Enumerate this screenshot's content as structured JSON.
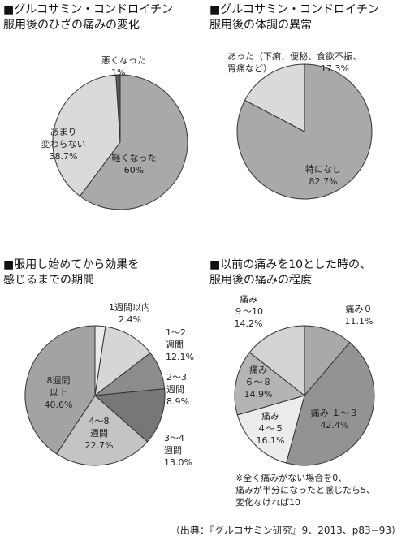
{
  "chart_data": [
    {
      "type": "pie",
      "title": "■グルコサミン・コンドロイチン\n服用後のひざの痛みの変化",
      "categories": [
        "軽くなった",
        "あまり\n変わらない",
        "悪くなった"
      ],
      "values": [
        60,
        38.7,
        1
      ],
      "value_labels": [
        "60%",
        "38.7%",
        "1%"
      ],
      "colors": [
        "#a9a9a9",
        "#dadada",
        "#5a5a5a"
      ]
    },
    {
      "type": "pie",
      "title": "■グルコサミン・コンドロイチン\n服用後の体調の異常",
      "categories": [
        "特になし",
        "あった（下痢、便秘、食欲不振、\n胃痛など）"
      ],
      "values": [
        82.7,
        17.3
      ],
      "value_labels": [
        "82.7%",
        "17.3%"
      ],
      "colors": [
        "#a9a9a9",
        "#dadada"
      ]
    },
    {
      "type": "pie",
      "title": "■服用し始めてから効果を\n感じるまでの期間",
      "categories": [
        "1週間以内",
        "1～2\n週間",
        "2～3\n週間",
        "3～4\n週間",
        "4～8\n週間",
        "8週間\n以上"
      ],
      "values": [
        2.4,
        12.1,
        8.9,
        13.0,
        22.7,
        40.6
      ],
      "value_labels": [
        "2.4%",
        "12.1%",
        "8.9%",
        "13.0%",
        "22.7%",
        "40.6%"
      ],
      "colors": [
        "#ececec",
        "#d6d6d6",
        "#8c8c8c",
        "#777777",
        "#c4c4c4",
        "#a3a3a3"
      ]
    },
    {
      "type": "pie",
      "title": "■以前の痛みを10とした時の、\n服用後の痛みの程度",
      "categories": [
        "痛み０",
        "痛み １～３",
        "痛み\n４～５",
        "痛み\n６～８",
        "痛み\n９～10"
      ],
      "values": [
        11.1,
        42.4,
        16.1,
        14.9,
        14.2
      ],
      "value_labels": [
        "11.1%",
        "42.4%",
        "16.1%",
        "14.9%",
        "14.2%"
      ],
      "colors": [
        "#a9a9a9",
        "#939393",
        "#ececec",
        "#b4b4b4",
        "#d3d3d3"
      ],
      "note": "※全く痛みがない場合を0、\n痛みが半分になったと感じたら5、\n変化なければ10"
    }
  ],
  "source": "（出典：『グルコサミン研究』9、2013、p83−93）"
}
